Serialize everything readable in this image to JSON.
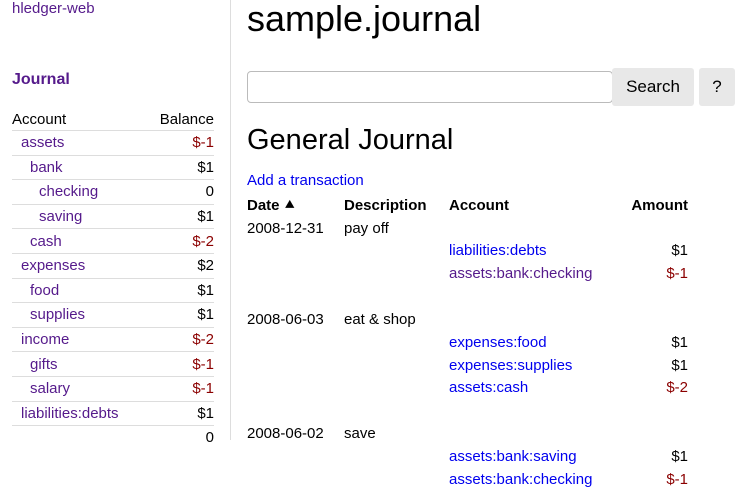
{
  "sidebar": {
    "brand": "hledger-web",
    "journal_link": "Journal",
    "headers": {
      "account": "Account",
      "balance": "Balance"
    },
    "accounts": [
      {
        "name": "assets",
        "balance": "$-1",
        "depth": 0,
        "negative": true
      },
      {
        "name": "bank",
        "balance": "$1",
        "depth": 1,
        "negative": false
      },
      {
        "name": "checking",
        "balance": "0",
        "depth": 2,
        "negative": false
      },
      {
        "name": "saving",
        "balance": "$1",
        "depth": 2,
        "negative": false
      },
      {
        "name": "cash",
        "balance": "$-2",
        "depth": 1,
        "negative": true
      },
      {
        "name": "expenses",
        "balance": "$2",
        "depth": 0,
        "negative": false
      },
      {
        "name": "food",
        "balance": "$1",
        "depth": 1,
        "negative": false
      },
      {
        "name": "supplies",
        "balance": "$1",
        "depth": 1,
        "negative": false
      },
      {
        "name": "income",
        "balance": "$-2",
        "depth": 0,
        "negative": true
      },
      {
        "name": "gifts",
        "balance": "$-1",
        "depth": 1,
        "negative": true
      },
      {
        "name": "salary",
        "balance": "$-1",
        "depth": 1,
        "negative": true
      },
      {
        "name": "liabilities:debts",
        "balance": "$1",
        "depth": 0,
        "negative": false
      }
    ],
    "total": "0"
  },
  "main": {
    "title": "sample.journal",
    "search": {
      "value": "",
      "placeholder": ""
    },
    "search_button": "Search",
    "help_button": "?",
    "heading": "General Journal",
    "add_link": "Add a transaction",
    "columns": {
      "date": "Date",
      "description": "Description",
      "account": "Account",
      "amount": "Amount"
    },
    "sort_icon": "chevron-up-icon",
    "transactions": [
      {
        "date": "2008-12-31",
        "description": "pay off",
        "postings": [
          {
            "account": "liabilities:debts",
            "amount": "$1",
            "visited": false
          },
          {
            "account": "assets:bank:checking",
            "amount": "$-1",
            "visited": true
          }
        ]
      },
      {
        "date": "2008-06-03",
        "description": "eat & shop",
        "postings": [
          {
            "account": "expenses:food",
            "amount": "$1",
            "visited": false
          },
          {
            "account": "expenses:supplies",
            "amount": "$1",
            "visited": false
          },
          {
            "account": "assets:cash",
            "amount": "$-2",
            "visited": false
          }
        ]
      },
      {
        "date": "2008-06-02",
        "description": "save",
        "postings": [
          {
            "account": "assets:bank:saving",
            "amount": "$1",
            "visited": false
          },
          {
            "account": "assets:bank:checking",
            "amount": "$-1",
            "visited": false
          }
        ]
      }
    ]
  },
  "colors": {
    "visited": "#551a8b",
    "link": "#0000ee",
    "negative": "#8b0000"
  }
}
